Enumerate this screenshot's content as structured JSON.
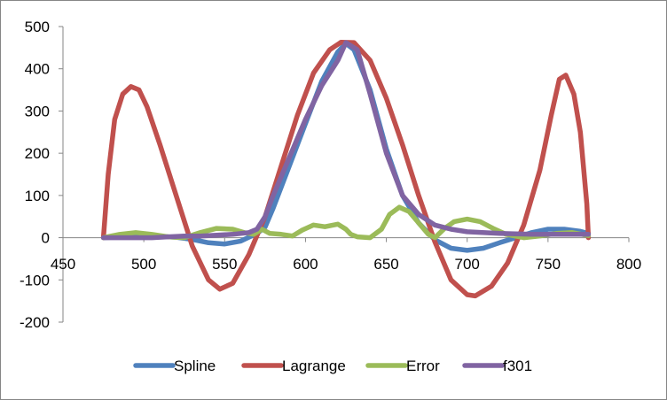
{
  "chart_data": {
    "type": "line",
    "title": "",
    "xlabel": "",
    "ylabel": "",
    "xlim": [
      450,
      800
    ],
    "ylim": [
      -200,
      500
    ],
    "x_ticks": [
      "450",
      "500",
      "550",
      "600",
      "650",
      "700",
      "750",
      "800"
    ],
    "y_ticks": [
      "500",
      "400",
      "300",
      "200",
      "100",
      "0",
      "-100",
      "-200"
    ],
    "grid": false,
    "legend": "bottom",
    "series": [
      {
        "name": "Spline",
        "color": "#4F81BD",
        "points": [
          [
            475,
            0
          ],
          [
            490,
            2
          ],
          [
            500,
            3
          ],
          [
            510,
            3
          ],
          [
            520,
            1
          ],
          [
            530,
            -4
          ],
          [
            540,
            -12
          ],
          [
            550,
            -15
          ],
          [
            560,
            -8
          ],
          [
            570,
            10
          ],
          [
            575,
            25
          ],
          [
            580,
            70
          ],
          [
            590,
            170
          ],
          [
            600,
            270
          ],
          [
            610,
            370
          ],
          [
            620,
            440
          ],
          [
            625,
            460
          ],
          [
            630,
            445
          ],
          [
            640,
            350
          ],
          [
            650,
            210
          ],
          [
            660,
            100
          ],
          [
            670,
            35
          ],
          [
            680,
            -5
          ],
          [
            690,
            -25
          ],
          [
            700,
            -30
          ],
          [
            710,
            -25
          ],
          [
            720,
            -12
          ],
          [
            730,
            0
          ],
          [
            740,
            12
          ],
          [
            750,
            20
          ],
          [
            760,
            20
          ],
          [
            770,
            15
          ],
          [
            775,
            10
          ]
        ]
      },
      {
        "name": "Lagrange",
        "color": "#C0504D",
        "points": [
          [
            475,
            0
          ],
          [
            478,
            150
          ],
          [
            482,
            280
          ],
          [
            487,
            340
          ],
          [
            492,
            358
          ],
          [
            497,
            350
          ],
          [
            502,
            310
          ],
          [
            510,
            220
          ],
          [
            520,
            100
          ],
          [
            530,
            -20
          ],
          [
            540,
            -100
          ],
          [
            547,
            -122
          ],
          [
            555,
            -108
          ],
          [
            565,
            -40
          ],
          [
            575,
            50
          ],
          [
            585,
            170
          ],
          [
            595,
            290
          ],
          [
            605,
            390
          ],
          [
            615,
            445
          ],
          [
            622,
            463
          ],
          [
            630,
            462
          ],
          [
            640,
            420
          ],
          [
            650,
            330
          ],
          [
            660,
            220
          ],
          [
            670,
            100
          ],
          [
            680,
            -10
          ],
          [
            690,
            -100
          ],
          [
            700,
            -135
          ],
          [
            705,
            -138
          ],
          [
            715,
            -115
          ],
          [
            725,
            -60
          ],
          [
            735,
            30
          ],
          [
            745,
            160
          ],
          [
            752,
            290
          ],
          [
            757,
            375
          ],
          [
            761,
            385
          ],
          [
            766,
            340
          ],
          [
            770,
            250
          ],
          [
            774,
            80
          ],
          [
            775,
            0
          ]
        ]
      },
      {
        "name": "Error",
        "color": "#9BBB59",
        "points": [
          [
            475,
            0
          ],
          [
            485,
            8
          ],
          [
            495,
            12
          ],
          [
            505,
            8
          ],
          [
            515,
            2
          ],
          [
            525,
            0
          ],
          [
            535,
            12
          ],
          [
            545,
            22
          ],
          [
            555,
            20
          ],
          [
            562,
            12
          ],
          [
            568,
            8
          ],
          [
            573,
            20
          ],
          [
            578,
            10
          ],
          [
            585,
            8
          ],
          [
            592,
            4
          ],
          [
            598,
            18
          ],
          [
            605,
            30
          ],
          [
            612,
            26
          ],
          [
            620,
            32
          ],
          [
            625,
            20
          ],
          [
            628,
            8
          ],
          [
            632,
            2
          ],
          [
            640,
            0
          ],
          [
            647,
            20
          ],
          [
            652,
            55
          ],
          [
            658,
            72
          ],
          [
            664,
            62
          ],
          [
            670,
            35
          ],
          [
            676,
            8
          ],
          [
            680,
            0
          ],
          [
            686,
            22
          ],
          [
            692,
            38
          ],
          [
            700,
            44
          ],
          [
            708,
            38
          ],
          [
            716,
            22
          ],
          [
            724,
            8
          ],
          [
            735,
            0
          ],
          [
            745,
            4
          ],
          [
            755,
            10
          ],
          [
            765,
            12
          ],
          [
            775,
            5
          ]
        ]
      },
      {
        "name": "f301",
        "color": "#8064A2",
        "points": [
          [
            475,
            0
          ],
          [
            495,
            0
          ],
          [
            505,
            0
          ],
          [
            515,
            2
          ],
          [
            525,
            4
          ],
          [
            535,
            4
          ],
          [
            545,
            6
          ],
          [
            555,
            8
          ],
          [
            565,
            12
          ],
          [
            570,
            20
          ],
          [
            575,
            50
          ],
          [
            580,
            100
          ],
          [
            590,
            190
          ],
          [
            600,
            280
          ],
          [
            610,
            360
          ],
          [
            620,
            420
          ],
          [
            625,
            462
          ],
          [
            632,
            445
          ],
          [
            640,
            340
          ],
          [
            650,
            200
          ],
          [
            660,
            100
          ],
          [
            670,
            55
          ],
          [
            680,
            30
          ],
          [
            690,
            20
          ],
          [
            700,
            14
          ],
          [
            720,
            10
          ],
          [
            740,
            8
          ],
          [
            760,
            8
          ],
          [
            775,
            8
          ]
        ]
      }
    ]
  }
}
